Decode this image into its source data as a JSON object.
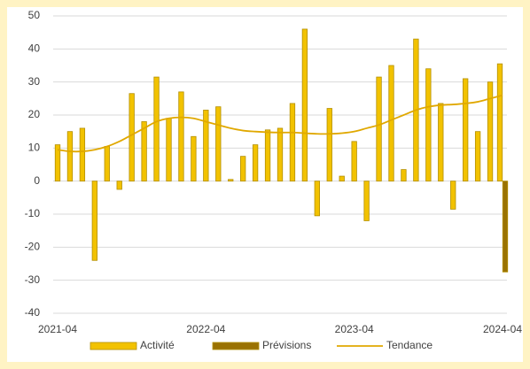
{
  "chart_data": {
    "type": "bar",
    "categories": [
      "2021-04",
      null,
      null,
      null,
      null,
      null,
      null,
      null,
      null,
      null,
      null,
      null,
      "2022-04",
      null,
      null,
      null,
      null,
      null,
      null,
      null,
      null,
      null,
      null,
      null,
      "2023-04",
      null,
      null,
      null,
      null,
      null,
      null,
      null,
      null,
      null,
      null,
      null,
      "2024-04"
    ],
    "series": [
      {
        "name": "Activité",
        "type": "bar",
        "color": "#f2c200",
        "values": [
          11,
          15,
          16,
          -24,
          10.5,
          -2.5,
          26.5,
          18,
          31.5,
          19,
          27,
          13.5,
          21.5,
          22.5,
          0.5,
          7.5,
          11,
          15.5,
          16,
          23.5,
          46,
          -10.5,
          22,
          1.5,
          12,
          -12,
          31.5,
          35,
          3.5,
          43,
          34,
          23.5,
          -8.5,
          31,
          15,
          30,
          35.5
        ]
      },
      {
        "name": "Prévisions",
        "type": "bar",
        "color": "#9a7200",
        "values": [
          null,
          null,
          null,
          null,
          null,
          null,
          null,
          null,
          null,
          null,
          null,
          null,
          null,
          null,
          null,
          null,
          null,
          null,
          null,
          null,
          null,
          null,
          null,
          null,
          null,
          null,
          null,
          null,
          null,
          null,
          null,
          null,
          null,
          null,
          null,
          null,
          -27.5
        ]
      },
      {
        "name": "Tendance",
        "type": "line",
        "color": "#e0a800",
        "values": [
          9.5,
          9,
          9,
          9.5,
          10.5,
          12,
          14,
          16,
          18,
          19,
          19.3,
          19,
          18,
          17,
          16,
          15.3,
          15,
          14.8,
          14.7,
          14.7,
          14.5,
          14.3,
          14.3,
          14.5,
          15,
          16,
          17,
          18.5,
          20,
          21.5,
          22.5,
          23,
          23.2,
          23.5,
          24,
          25,
          26
        ]
      }
    ],
    "ylim": [
      -40,
      50
    ],
    "yticks": [
      -40,
      -30,
      -20,
      -10,
      0,
      10,
      20,
      30,
      40,
      50
    ],
    "grid": true,
    "legend": "bottom"
  }
}
